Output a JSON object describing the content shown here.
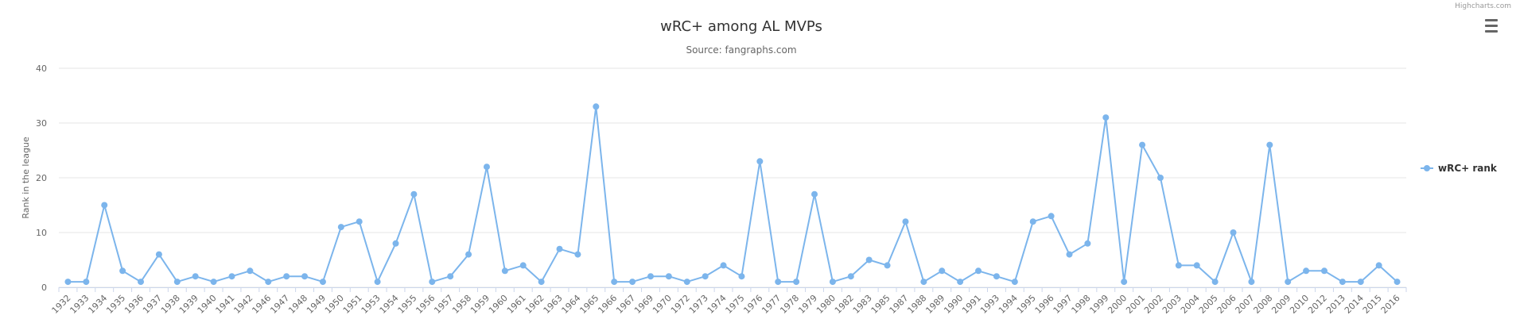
{
  "credits": "Highcharts.com",
  "menu_icon": "hamburger-menu-icon",
  "colors": {
    "series": "#7cb5ec",
    "grid": "#e6e6e6",
    "text": "#333333",
    "axis_text": "#666666"
  },
  "chart_data": {
    "type": "line",
    "title": "wRC+ among AL MVPs",
    "subtitle": "Source: fangraphs.com",
    "xlabel": "",
    "ylabel": "Rank in the league",
    "ylim": [
      0,
      40
    ],
    "yticks": [
      0,
      10,
      20,
      30,
      40
    ],
    "grid": true,
    "legend_position": "right",
    "categories": [
      "1932",
      "1933",
      "1934",
      "1935",
      "1936",
      "1937",
      "1938",
      "1939",
      "1940",
      "1941",
      "1942",
      "1946",
      "1947",
      "1948",
      "1949",
      "1950",
      "1951",
      "1953",
      "1954",
      "1955",
      "1956",
      "1957",
      "1958",
      "1959",
      "1960",
      "1961",
      "1962",
      "1963",
      "1964",
      "1965",
      "1966",
      "1967",
      "1969",
      "1970",
      "1972",
      "1973",
      "1974",
      "1975",
      "1976",
      "1977",
      "1978",
      "1979",
      "1980",
      "1982",
      "1983",
      "1985",
      "1987",
      "1988",
      "1989",
      "1990",
      "1991",
      "1993",
      "1994",
      "1995",
      "1996",
      "1997",
      "1998",
      "1999",
      "2000",
      "2001",
      "2002",
      "2003",
      "2004",
      "2005",
      "2006",
      "2007",
      "2008",
      "2009",
      "2010",
      "2012",
      "2013",
      "2014",
      "2015",
      "2016"
    ],
    "series": [
      {
        "name": "wRC+ rank",
        "values": [
          1,
          1,
          15,
          3,
          1,
          6,
          1,
          2,
          1,
          2,
          3,
          1,
          2,
          2,
          1,
          11,
          12,
          1,
          8,
          17,
          1,
          2,
          6,
          22,
          3,
          4,
          1,
          7,
          6,
          33,
          1,
          1,
          2,
          2,
          1,
          2,
          4,
          2,
          23,
          1,
          1,
          17,
          1,
          2,
          5,
          4,
          12,
          1,
          3,
          1,
          3,
          2,
          1,
          12,
          13,
          6,
          8,
          31,
          1,
          26,
          20,
          4,
          4,
          1,
          10,
          1,
          26,
          1,
          3,
          3,
          1,
          1,
          4,
          1
        ]
      }
    ]
  }
}
